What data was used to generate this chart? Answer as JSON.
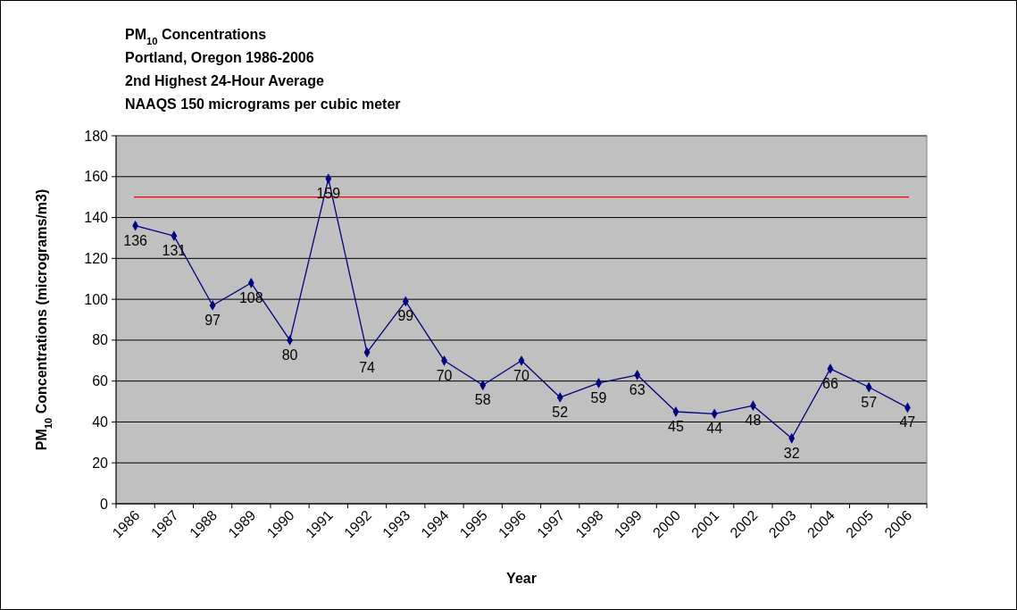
{
  "chart_data": {
    "type": "line",
    "title": "PM$_{10}$ Concentrations",
    "subtitle": "Portland, Oregon 1986-2006\n2nd Highest 24-Hour Average\nNAAQS 150 micrograms per cubic meter",
    "xlabel": "Year",
    "ylabel": "PM$_{10}$ Concentrations (micrograms/m3)",
    "categories": [
      "1986",
      "1987",
      "1988",
      "1989",
      "1990",
      "1991",
      "1992",
      "1993",
      "1994",
      "1995",
      "1996",
      "1997",
      "1998",
      "1999",
      "2000",
      "2001",
      "2002",
      "2003",
      "2004",
      "2005",
      "2006"
    ],
    "series": [
      {
        "color": "#000080",
        "values": [
          136,
          131,
          97,
          108,
          80,
          159,
          74,
          99,
          70,
          58,
          70,
          52,
          59,
          63,
          45,
          44,
          48,
          32,
          66,
          57,
          47
        ]
      }
    ],
    "ylim": [
      0,
      180
    ],
    "yticks": [
      0,
      20,
      40,
      60,
      80,
      100,
      120,
      140,
      160,
      180
    ],
    "grid": "y",
    "marker": "diamond",
    "line_style": "solid",
    "data_labels": true,
    "ref_lines": [
      {
        "axis": "y",
        "value": 150,
        "color": "#ff0000"
      }
    ]
  }
}
